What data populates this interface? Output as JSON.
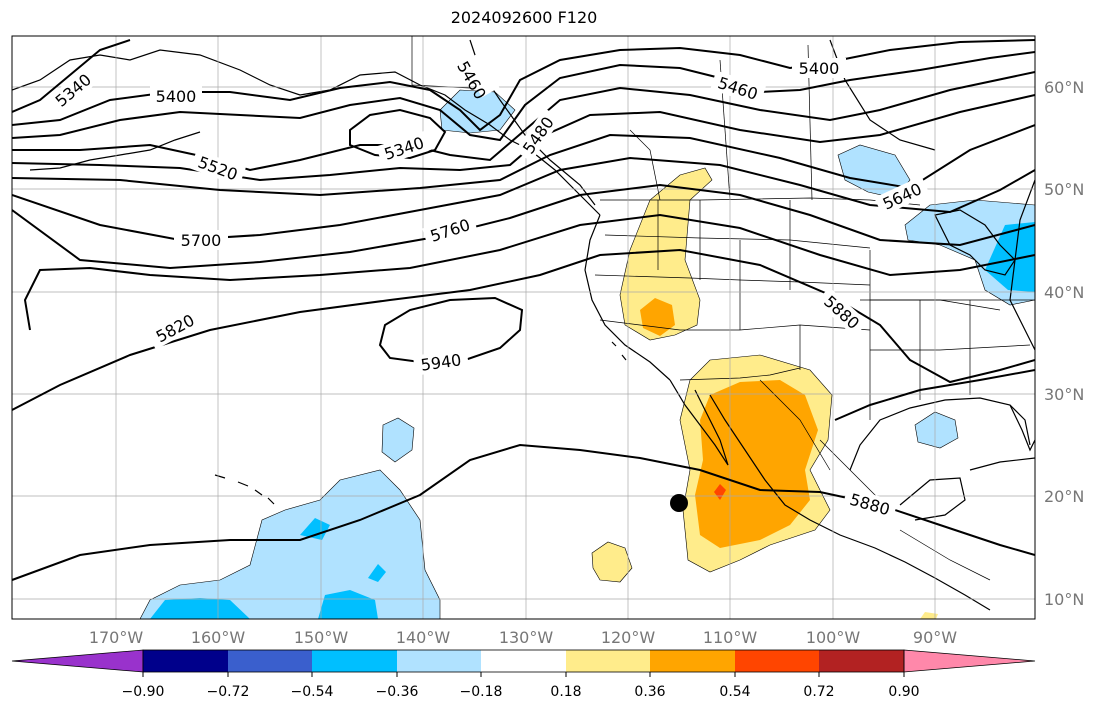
{
  "title": "2024092600 F120",
  "map": {
    "lat_labels": [
      "60°N",
      "50°N",
      "40°N",
      "30°N",
      "20°N",
      "10°N"
    ],
    "lon_labels": [
      "170°W",
      "160°W",
      "150°W",
      "140°W",
      "130°W",
      "120°W",
      "110°W",
      "100°W",
      "90°W"
    ],
    "contour_labels": [
      "5340",
      "5400",
      "5460",
      "5340",
      "5520",
      "5700",
      "5760",
      "5820",
      "5940",
      "5480",
      "5400",
      "5460",
      "5640",
      "5880",
      "5880"
    ],
    "marker": "storm-center-dot"
  },
  "colorbar": {
    "tick_labels": [
      "−0.90",
      "−0.72",
      "−0.54",
      "−0.36",
      "−0.18",
      "0.18",
      "0.36",
      "0.54",
      "0.72",
      "0.90"
    ],
    "colors": [
      "#9932cc",
      "#00008b",
      "#3a5fcd",
      "#00bfff",
      "#b0e2ff",
      "#ffffff",
      "#ffec8b",
      "#ffa500",
      "#ff4500",
      "#b22222",
      "#ff88aa"
    ]
  }
}
